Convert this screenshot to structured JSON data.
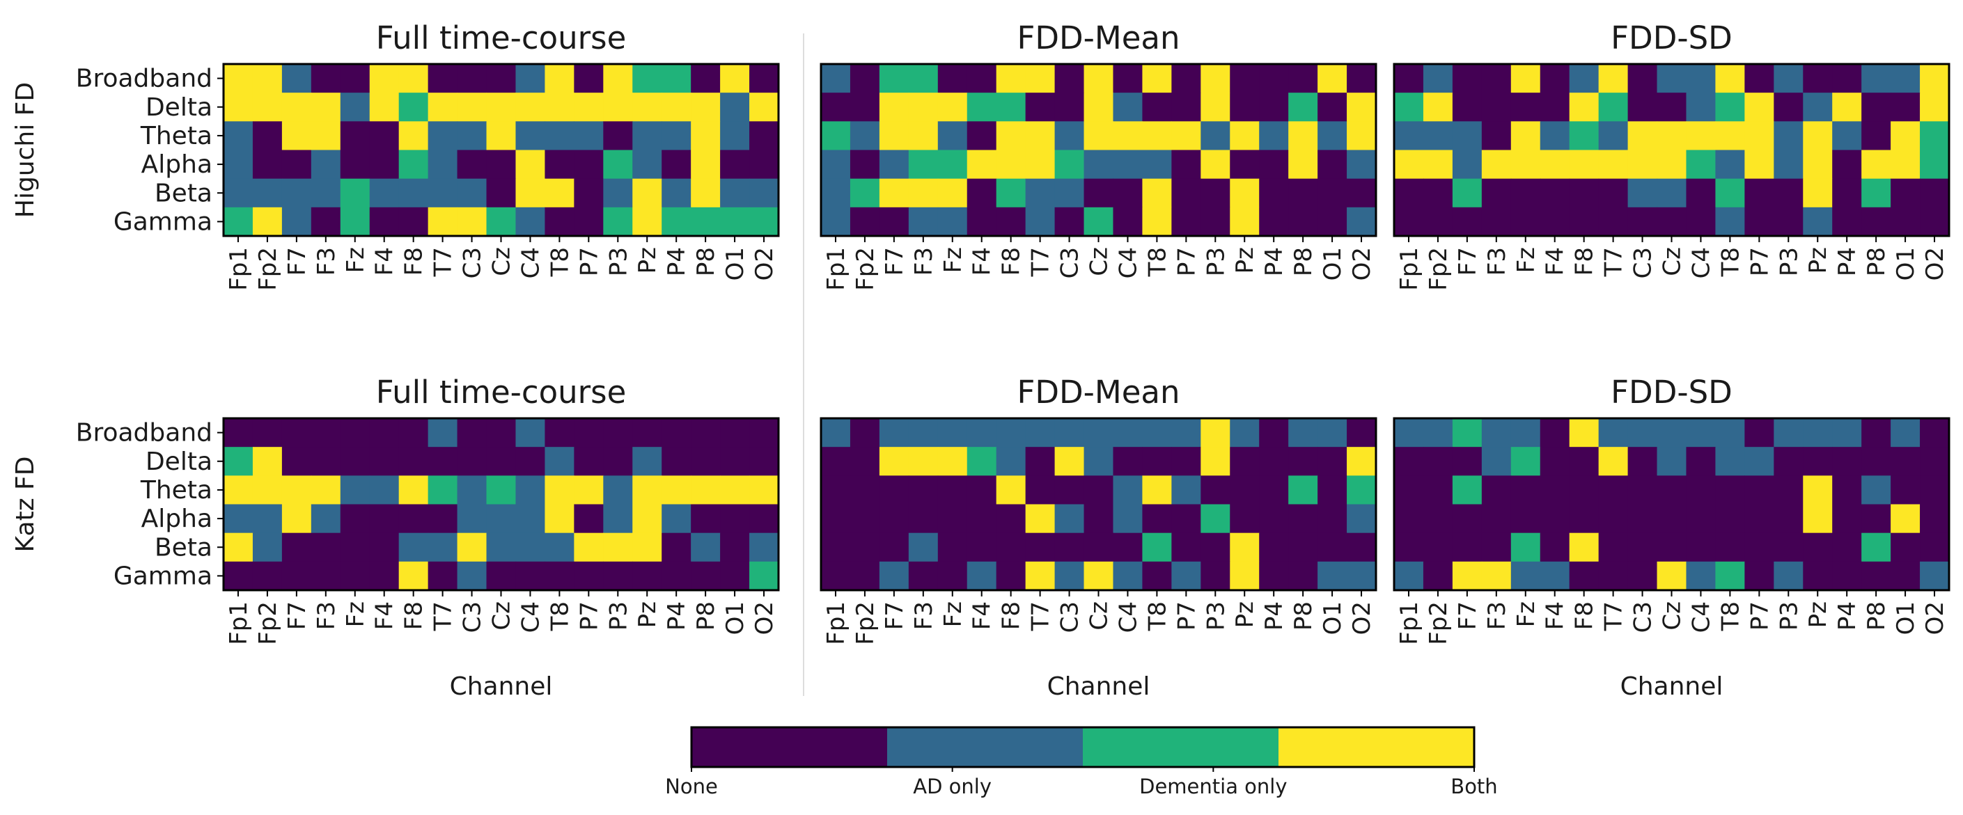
{
  "colors": {
    "none": "#440154",
    "ad_only": "#31688e",
    "dementia_only": "#20b37a",
    "both": "#fde725",
    "divider": "#dddddd"
  },
  "chart_data": {
    "type": "heatmap",
    "code_legend": {
      "0": "None",
      "1": "AD only",
      "2": "Dementia only",
      "3": "Both"
    },
    "colorbar": {
      "labels": [
        "None",
        "AD only",
        "Dementia only",
        "Both"
      ]
    },
    "channels": [
      "Fp1",
      "Fp2",
      "F7",
      "F3",
      "Fz",
      "F4",
      "F8",
      "T7",
      "C3",
      "Cz",
      "C4",
      "T8",
      "P7",
      "P3",
      "Pz",
      "P4",
      "P8",
      "O1",
      "O2"
    ],
    "bands": [
      "Broadband",
      "Delta",
      "Theta",
      "Alpha",
      "Beta",
      "Gamma"
    ],
    "xlabel": "Channel",
    "rows": [
      {
        "ylabel": "Higuchi FD",
        "panels": [
          {
            "title": "Full time-course",
            "values": [
              [
                3,
                3,
                1,
                0,
                0,
                3,
                3,
                0,
                0,
                0,
                1,
                3,
                0,
                3,
                2,
                2,
                0,
                3,
                0
              ],
              [
                3,
                3,
                3,
                3,
                1,
                3,
                2,
                3,
                3,
                3,
                3,
                3,
                3,
                3,
                3,
                3,
                3,
                1,
                3
              ],
              [
                1,
                0,
                3,
                3,
                0,
                0,
                3,
                1,
                1,
                3,
                1,
                1,
                1,
                0,
                1,
                1,
                3,
                1,
                0
              ],
              [
                1,
                0,
                0,
                1,
                0,
                0,
                2,
                1,
                0,
                0,
                3,
                0,
                0,
                2,
                1,
                0,
                3,
                0,
                0
              ],
              [
                1,
                1,
                1,
                1,
                2,
                1,
                1,
                1,
                1,
                0,
                3,
                3,
                0,
                1,
                3,
                1,
                3,
                1,
                1
              ],
              [
                2,
                3,
                1,
                0,
                2,
                0,
                0,
                3,
                3,
                2,
                1,
                0,
                0,
                2,
                3,
                2,
                2,
                2,
                2
              ]
            ]
          },
          {
            "title": "FDD-Mean",
            "values": [
              [
                1,
                0,
                2,
                2,
                0,
                0,
                3,
                3,
                0,
                3,
                0,
                3,
                0,
                3,
                0,
                0,
                0,
                3,
                0
              ],
              [
                0,
                0,
                3,
                3,
                3,
                2,
                2,
                0,
                0,
                3,
                1,
                0,
                0,
                3,
                0,
                0,
                2,
                0,
                3
              ],
              [
                2,
                1,
                3,
                3,
                1,
                0,
                3,
                3,
                1,
                3,
                3,
                3,
                3,
                1,
                3,
                1,
                3,
                1,
                3
              ],
              [
                1,
                0,
                1,
                2,
                2,
                3,
                3,
                3,
                2,
                1,
                1,
                1,
                0,
                3,
                0,
                0,
                3,
                0,
                1
              ],
              [
                1,
                2,
                3,
                3,
                3,
                0,
                2,
                1,
                1,
                0,
                0,
                3,
                0,
                0,
                3,
                0,
                0,
                0,
                0
              ],
              [
                1,
                0,
                0,
                1,
                1,
                0,
                0,
                1,
                0,
                2,
                0,
                3,
                0,
                0,
                3,
                0,
                0,
                0,
                1
              ]
            ]
          },
          {
            "title": "FDD-SD",
            "values": [
              [
                0,
                1,
                0,
                0,
                3,
                0,
                1,
                3,
                0,
                1,
                1,
                3,
                0,
                1,
                0,
                0,
                1,
                1,
                3
              ],
              [
                2,
                3,
                0,
                0,
                0,
                0,
                3,
                2,
                0,
                0,
                1,
                2,
                3,
                0,
                1,
                3,
                0,
                0,
                3
              ],
              [
                1,
                1,
                1,
                0,
                3,
                1,
                2,
                1,
                3,
                3,
                3,
                3,
                3,
                1,
                3,
                1,
                0,
                3,
                2
              ],
              [
                3,
                3,
                1,
                3,
                3,
                3,
                3,
                3,
                3,
                3,
                2,
                1,
                3,
                1,
                3,
                0,
                3,
                3,
                2
              ],
              [
                0,
                0,
                2,
                0,
                0,
                0,
                0,
                0,
                1,
                1,
                0,
                2,
                0,
                0,
                3,
                0,
                2,
                0,
                0
              ],
              [
                0,
                0,
                0,
                0,
                0,
                0,
                0,
                0,
                0,
                0,
                0,
                1,
                0,
                0,
                1,
                0,
                0,
                0,
                0
              ]
            ]
          }
        ]
      },
      {
        "ylabel": "Katz FD",
        "panels": [
          {
            "title": "Full time-course",
            "values": [
              [
                0,
                0,
                0,
                0,
                0,
                0,
                0,
                1,
                0,
                0,
                1,
                0,
                0,
                0,
                0,
                0,
                0,
                0,
                0
              ],
              [
                2,
                3,
                0,
                0,
                0,
                0,
                0,
                0,
                0,
                0,
                0,
                1,
                0,
                0,
                1,
                0,
                0,
                0,
                0
              ],
              [
                3,
                3,
                3,
                3,
                1,
                1,
                3,
                2,
                1,
                2,
                1,
                3,
                3,
                1,
                3,
                3,
                3,
                3,
                3
              ],
              [
                1,
                1,
                3,
                1,
                0,
                0,
                0,
                0,
                1,
                1,
                1,
                3,
                0,
                1,
                3,
                1,
                0,
                0,
                0
              ],
              [
                3,
                1,
                0,
                0,
                0,
                0,
                1,
                1,
                3,
                1,
                1,
                1,
                3,
                3,
                3,
                0,
                1,
                0,
                1
              ],
              [
                0,
                0,
                0,
                0,
                0,
                0,
                3,
                0,
                1,
                0,
                0,
                0,
                0,
                0,
                0,
                0,
                0,
                0,
                2
              ]
            ]
          },
          {
            "title": "FDD-Mean",
            "values": [
              [
                1,
                0,
                1,
                1,
                1,
                1,
                1,
                1,
                1,
                1,
                1,
                1,
                1,
                3,
                1,
                0,
                1,
                1,
                0
              ],
              [
                0,
                0,
                3,
                3,
                3,
                2,
                1,
                0,
                3,
                1,
                0,
                0,
                0,
                3,
                0,
                0,
                0,
                0,
                3
              ],
              [
                0,
                0,
                0,
                0,
                0,
                0,
                3,
                0,
                0,
                0,
                1,
                3,
                1,
                0,
                0,
                0,
                2,
                0,
                2
              ],
              [
                0,
                0,
                0,
                0,
                0,
                0,
                0,
                3,
                1,
                0,
                1,
                0,
                0,
                2,
                0,
                0,
                0,
                0,
                1
              ],
              [
                0,
                0,
                0,
                1,
                0,
                0,
                0,
                0,
                0,
                0,
                0,
                2,
                0,
                0,
                3,
                0,
                0,
                0,
                0
              ],
              [
                0,
                0,
                1,
                0,
                0,
                1,
                0,
                3,
                1,
                3,
                1,
                0,
                1,
                0,
                3,
                0,
                0,
                1,
                1
              ]
            ]
          },
          {
            "title": "FDD-SD",
            "values": [
              [
                1,
                1,
                2,
                1,
                1,
                0,
                3,
                1,
                1,
                1,
                1,
                1,
                0,
                1,
                1,
                1,
                0,
                1,
                0
              ],
              [
                0,
                0,
                0,
                1,
                2,
                0,
                0,
                3,
                0,
                1,
                0,
                1,
                1,
                0,
                0,
                0,
                0,
                0,
                0
              ],
              [
                0,
                0,
                2,
                0,
                0,
                0,
                0,
                0,
                0,
                0,
                0,
                0,
                0,
                0,
                3,
                0,
                1,
                0,
                0
              ],
              [
                0,
                0,
                0,
                0,
                0,
                0,
                0,
                0,
                0,
                0,
                0,
                0,
                0,
                0,
                3,
                0,
                0,
                3,
                0
              ],
              [
                0,
                0,
                0,
                0,
                2,
                0,
                3,
                0,
                0,
                0,
                0,
                0,
                0,
                0,
                0,
                0,
                2,
                0,
                0
              ],
              [
                1,
                0,
                3,
                3,
                1,
                1,
                0,
                0,
                0,
                3,
                1,
                2,
                0,
                1,
                0,
                0,
                0,
                0,
                1
              ]
            ]
          }
        ]
      }
    ]
  }
}
